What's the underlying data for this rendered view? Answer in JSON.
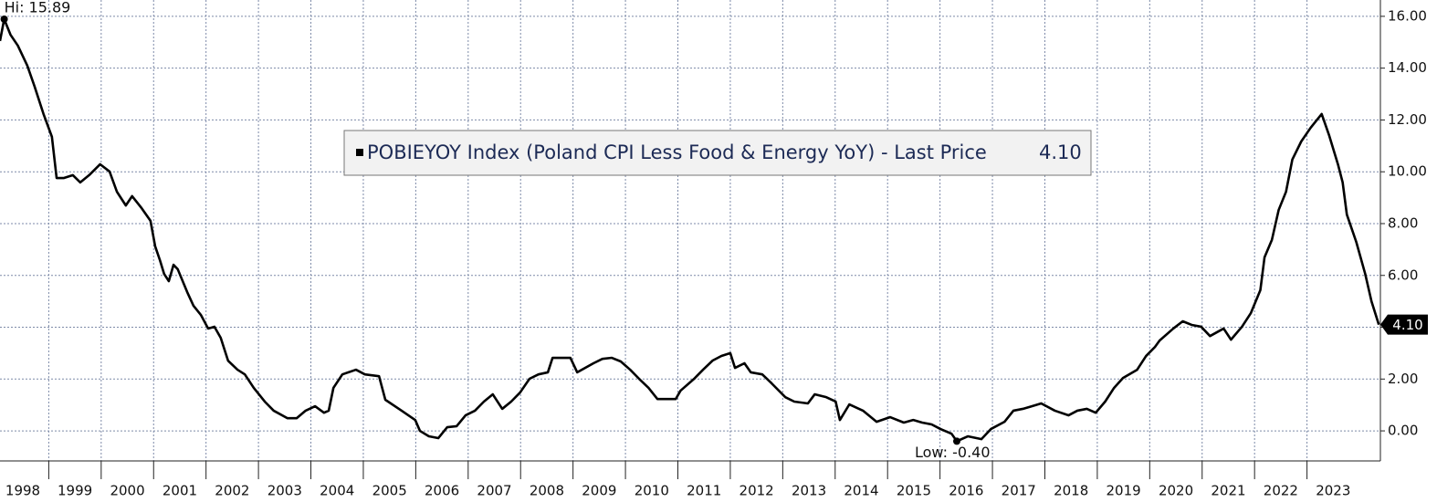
{
  "chart_data": {
    "type": "line",
    "legend": "POBIEYOY Index (Poland CPI Less Food & Energy YoY) - Last Price",
    "last_price": {
      "value": 4.1,
      "label": "4.10"
    },
    "annotations": [
      {
        "label": "Hi: 15.89",
        "x": 1998.15,
        "y": 15.89
      },
      {
        "label": "Low: -0.40",
        "x": 2016.32,
        "y": -0.4
      }
    ],
    "series": [
      {
        "color": "#000000",
        "x": [
          1998.07,
          1998.15,
          1998.27,
          1998.41,
          1998.59,
          1998.73,
          1998.9,
          1999.06,
          1999.15,
          1999.29,
          1999.46,
          1999.6,
          1999.77,
          1999.98,
          2000.16,
          2000.3,
          2000.47,
          2000.59,
          2000.77,
          2000.94,
          2001.03,
          2001.12,
          2001.2,
          2001.29,
          2001.38,
          2001.46,
          2001.64,
          2001.76,
          2001.9,
          2002.04,
          2002.16,
          2002.28,
          2002.42,
          2002.6,
          2002.74,
          2002.91,
          2003.12,
          2003.29,
          2003.55,
          2003.73,
          2003.9,
          2004.08,
          2004.25,
          2004.34,
          2004.43,
          2004.6,
          2004.86,
          2005.03,
          2005.3,
          2005.42,
          2005.73,
          2005.99,
          2006.08,
          2006.25,
          2006.43,
          2006.6,
          2006.78,
          2006.95,
          2007.13,
          2007.3,
          2007.47,
          2007.65,
          2007.82,
          2007.99,
          2008.17,
          2008.34,
          2008.52,
          2008.61,
          2008.95,
          2009.08,
          2009.39,
          2009.56,
          2009.74,
          2009.91,
          2010.09,
          2010.26,
          2010.44,
          2010.61,
          2010.96,
          2011.05,
          2011.31,
          2011.48,
          2011.66,
          2011.83,
          2012.0,
          2012.09,
          2012.27,
          2012.39,
          2012.61,
          2012.79,
          2013.05,
          2013.22,
          2013.48,
          2013.61,
          2013.83,
          2014.01,
          2014.09,
          2014.27,
          2014.53,
          2014.79,
          2015.05,
          2015.31,
          2015.49,
          2015.66,
          2015.84,
          2016.01,
          2016.22,
          2016.32,
          2016.53,
          2016.79,
          2016.97,
          2017.23,
          2017.4,
          2017.58,
          2017.75,
          2017.93,
          2018.19,
          2018.45,
          2018.62,
          2018.8,
          2018.97,
          2019.15,
          2019.32,
          2019.49,
          2019.76,
          2019.93,
          2020.1,
          2020.19,
          2020.45,
          2020.63,
          2020.8,
          2020.98,
          2021.15,
          2021.41,
          2021.55,
          2021.76,
          2021.93,
          2022.11,
          2022.19,
          2022.33,
          2022.46,
          2022.6,
          2022.72,
          2022.89,
          2023.07,
          2023.28,
          2023.42,
          2023.59,
          2023.68,
          2023.76,
          2023.94,
          2024.11,
          2024.23,
          2024.37
        ],
        "values": [
          15.05,
          15.89,
          15.29,
          14.87,
          14.1,
          13.29,
          12.23,
          11.35,
          9.76,
          9.76,
          9.87,
          9.59,
          9.87,
          10.29,
          10.01,
          9.23,
          8.7,
          9.06,
          8.6,
          8.11,
          7.12,
          6.59,
          6.06,
          5.78,
          6.41,
          6.24,
          5.36,
          4.83,
          4.48,
          3.95,
          4.02,
          3.59,
          2.71,
          2.36,
          2.18,
          1.66,
          1.13,
          0.78,
          0.49,
          0.49,
          0.78,
          0.95,
          0.7,
          0.78,
          1.66,
          2.18,
          2.36,
          2.18,
          2.11,
          1.2,
          0.78,
          0.42,
          0.0,
          -0.21,
          -0.28,
          0.14,
          0.18,
          0.6,
          0.78,
          1.13,
          1.41,
          0.85,
          1.13,
          1.48,
          2.01,
          2.18,
          2.26,
          2.82,
          2.82,
          2.26,
          2.61,
          2.78,
          2.82,
          2.68,
          2.36,
          2.01,
          1.66,
          1.23,
          1.23,
          1.55,
          2.01,
          2.36,
          2.71,
          2.89,
          3.0,
          2.43,
          2.61,
          2.26,
          2.18,
          1.83,
          1.3,
          1.13,
          1.06,
          1.41,
          1.3,
          1.13,
          0.42,
          1.02,
          0.78,
          0.35,
          0.53,
          0.32,
          0.42,
          0.32,
          0.25,
          0.07,
          -0.11,
          -0.4,
          -0.21,
          -0.32,
          0.07,
          0.35,
          0.78,
          0.85,
          0.95,
          1.06,
          0.78,
          0.6,
          0.78,
          0.85,
          0.7,
          1.13,
          1.66,
          2.04,
          2.36,
          2.89,
          3.24,
          3.49,
          3.95,
          4.23,
          4.09,
          4.02,
          3.66,
          3.95,
          3.52,
          4.02,
          4.55,
          5.43,
          6.7,
          7.37,
          8.53,
          9.23,
          10.47,
          11.17,
          11.7,
          12.23,
          11.42,
          10.29,
          9.59,
          8.35,
          7.29,
          6.06,
          5.0,
          4.1
        ]
      }
    ],
    "xlim": [
      1998.07,
      2024.4
    ],
    "xticks": [
      1998,
      1999,
      2000,
      2001,
      2002,
      2003,
      2004,
      2005,
      2006,
      2007,
      2008,
      2009,
      2010,
      2011,
      2012,
      2013,
      2014,
      2015,
      2016,
      2017,
      2018,
      2019,
      2020,
      2021,
      2022,
      2023
    ],
    "ylim": [
      -1.16,
      16.63
    ],
    "yticks": [
      {
        "value": 0,
        "label": "0.00"
      },
      {
        "value": 2,
        "label": "2.00"
      },
      {
        "value": 4,
        "label": "4.00"
      },
      {
        "value": 6,
        "label": "6.00"
      },
      {
        "value": 8,
        "label": "8.00"
      },
      {
        "value": 10,
        "label": "10.00"
      },
      {
        "value": 12,
        "label": "12.00"
      },
      {
        "value": 14,
        "label": "14.00"
      },
      {
        "value": 16,
        "label": "16.00"
      }
    ],
    "grid": true,
    "y_axis_side": "right"
  }
}
